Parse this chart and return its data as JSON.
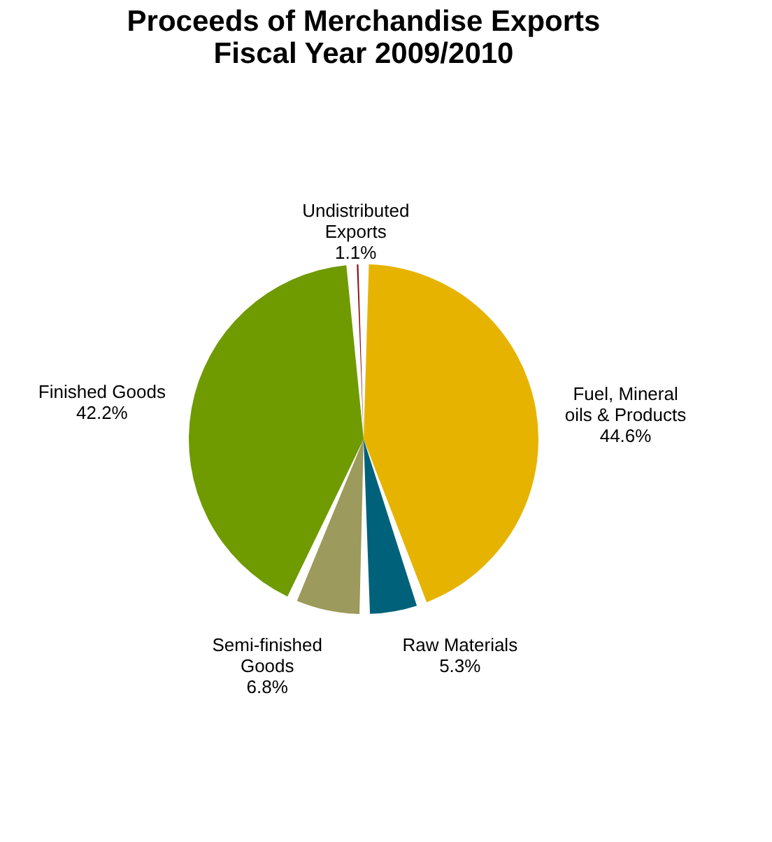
{
  "chart_data": {
    "type": "pie",
    "title": "Proceeds of Merchandise Exports\nFiscal Year 2009/2010",
    "categories": [
      "Fuel, Mineral oils & Products",
      "Raw Materials",
      "Semi-finished Goods",
      "Finished Goods",
      "Undistributed Exports"
    ],
    "values": [
      44.6,
      5.3,
      6.8,
      42.2,
      1.1
    ],
    "colors": [
      "#e6b400",
      "#00627a",
      "#9c9a5c",
      "#6f9a00",
      "#8b1010"
    ],
    "value_labels": [
      "44.6%",
      "5.3%",
      "6.8%",
      "42.2%",
      "1.1%"
    ],
    "legend": false
  }
}
